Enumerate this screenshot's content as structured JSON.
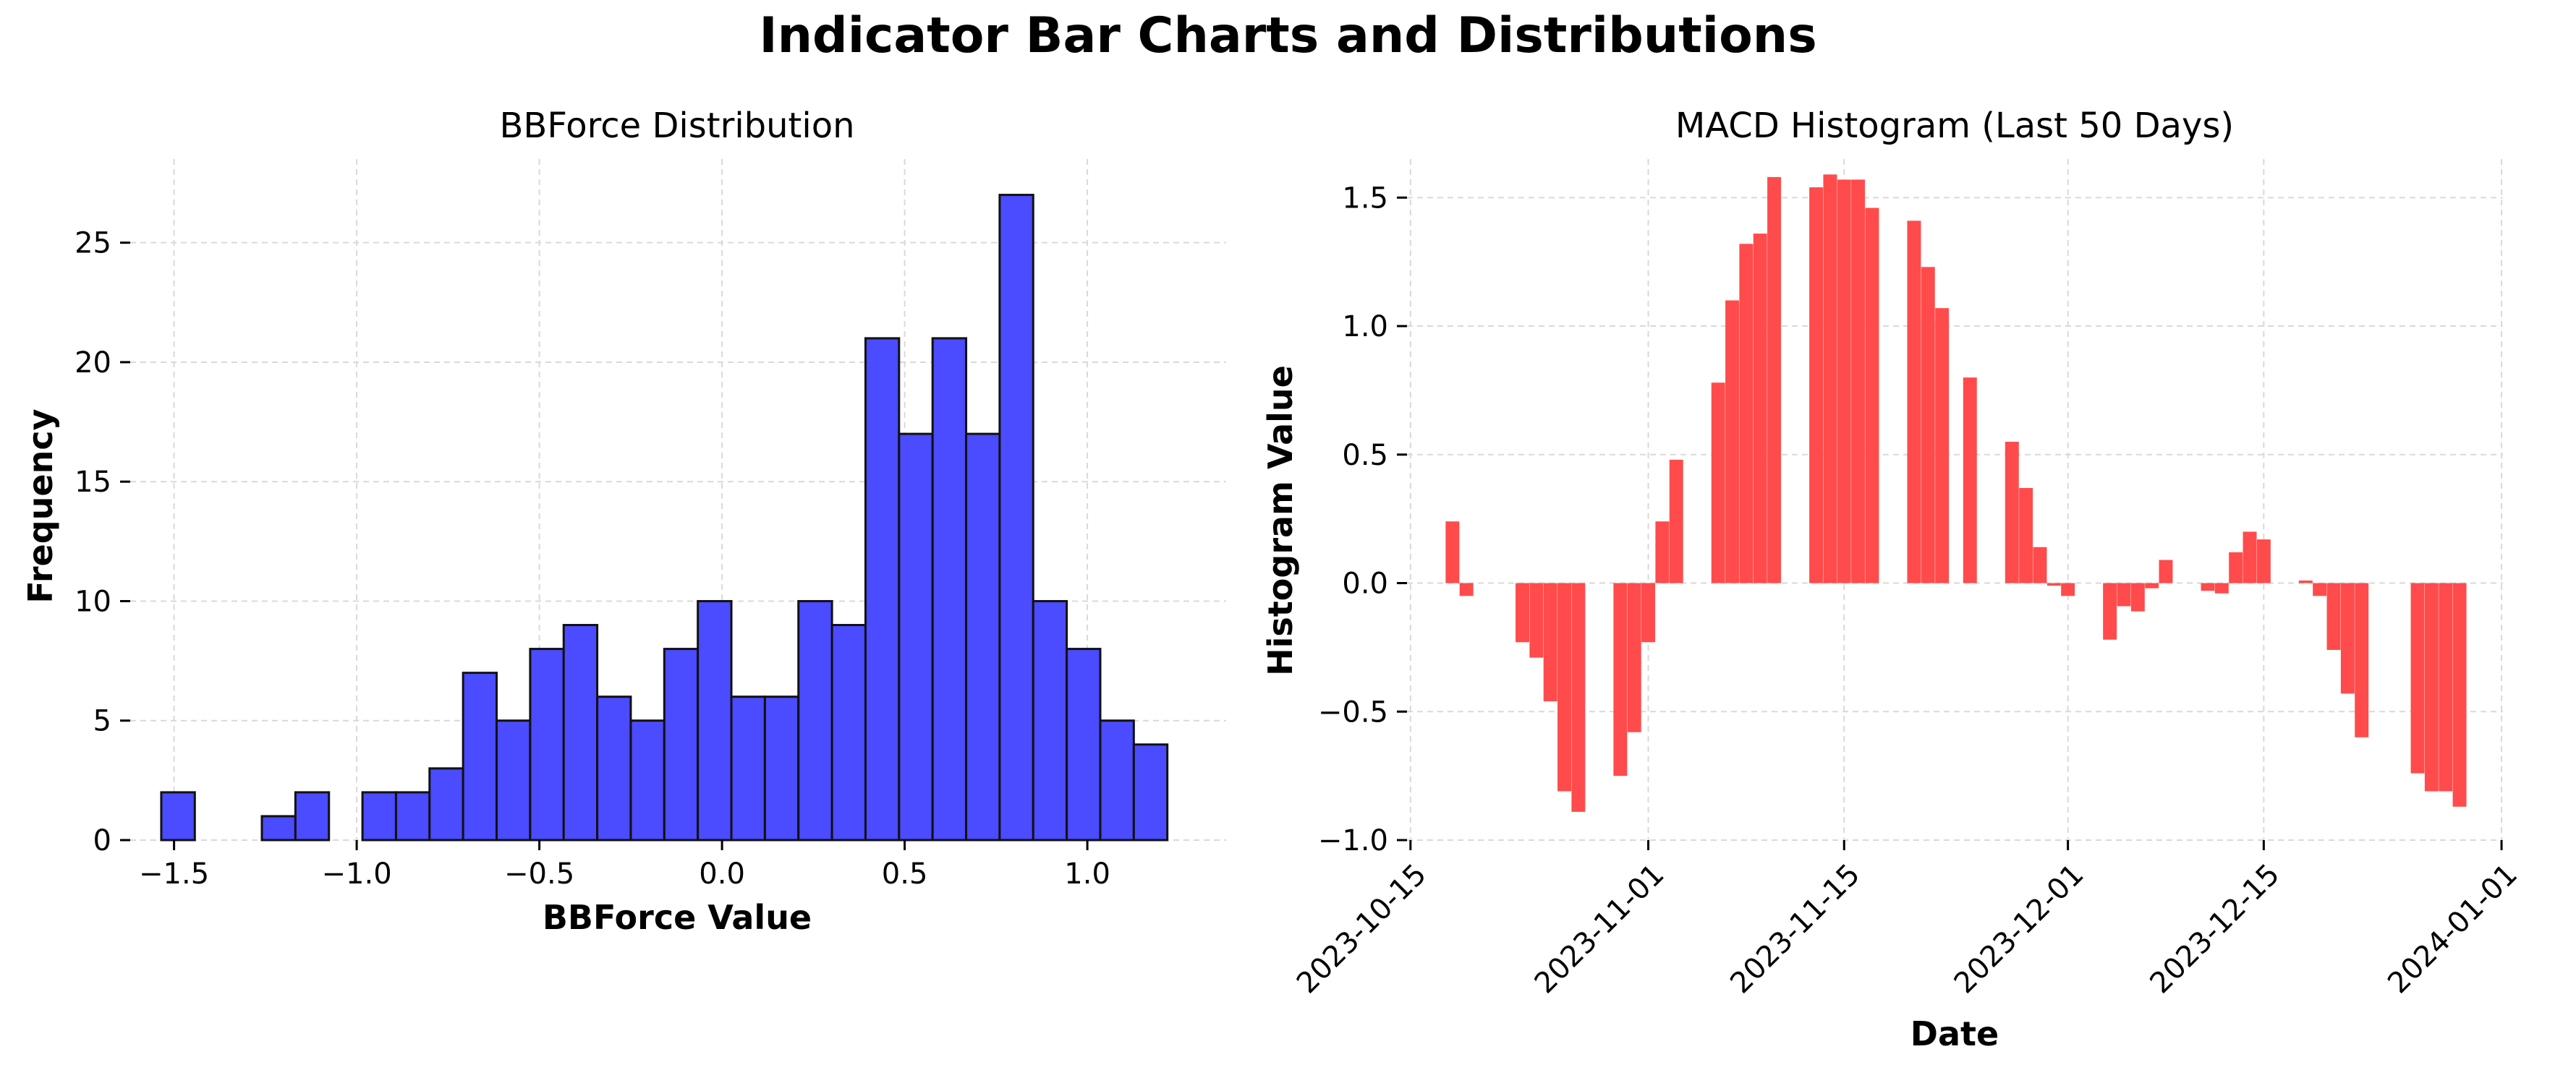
{
  "figure": {
    "title": "Indicator Bar Charts and Distributions",
    "colors": {
      "histogram_fill": "#4b4bff",
      "histogram_edge": "#111111",
      "macd_bar": "#ff4b4b",
      "grid": "#d9d9d9"
    }
  },
  "chart_data": [
    {
      "type": "bar",
      "title": "BBForce Distribution",
      "xlabel": "BBForce Value",
      "ylabel": "Frequency",
      "xlim": [
        -1.62,
        1.38
      ],
      "ylim": [
        0,
        28.5
      ],
      "xticks": [
        -1.5,
        -1.0,
        -0.5,
        0.0,
        0.5,
        1.0
      ],
      "xtick_labels": [
        "−1.5",
        "−1.0",
        "−0.5",
        "0.0",
        "0.5",
        "1.0"
      ],
      "yticks": [
        0,
        5,
        10,
        15,
        20,
        25
      ],
      "ytick_labels": [
        "0",
        "5",
        "10",
        "15",
        "20",
        "25"
      ],
      "grid": true,
      "bin_start": -1.535,
      "bin_width": 0.0918,
      "counts": [
        2,
        0,
        0,
        1,
        2,
        0,
        2,
        2,
        3,
        7,
        5,
        8,
        9,
        6,
        5,
        8,
        10,
        6,
        6,
        10,
        9,
        21,
        17,
        21,
        17,
        27,
        10,
        8,
        5,
        4
      ]
    },
    {
      "type": "bar",
      "title": "MACD Histogram (Last 50 Days)",
      "xlabel": "Date",
      "ylabel": "Histogram Value",
      "xlim": [
        "2023-10-15",
        "2024-01-01"
      ],
      "ylim": [
        -1.0,
        1.65
      ],
      "xticks": [
        "2023-10-15",
        "2023-11-01",
        "2023-11-15",
        "2023-12-01",
        "2023-12-15",
        "2024-01-01"
      ],
      "yticks": [
        -1.0,
        -0.5,
        0.0,
        0.5,
        1.0,
        1.5
      ],
      "ytick_labels": [
        "−1.0",
        "−0.5",
        "0.0",
        "0.5",
        "1.0",
        "1.5"
      ],
      "grid": true,
      "dates": [
        "2023-10-18",
        "2023-10-19",
        "2023-10-23",
        "2023-10-24",
        "2023-10-25",
        "2023-10-26",
        "2023-10-27",
        "2023-10-30",
        "2023-10-31",
        "2023-11-01",
        "2023-11-02",
        "2023-11-03",
        "2023-11-06",
        "2023-11-07",
        "2023-11-08",
        "2023-11-09",
        "2023-11-10",
        "2023-11-13",
        "2023-11-14",
        "2023-11-15",
        "2023-11-16",
        "2023-11-17",
        "2023-11-20",
        "2023-11-21",
        "2023-11-22",
        "2023-11-24",
        "2023-11-27",
        "2023-11-28",
        "2023-11-29",
        "2023-11-30",
        "2023-12-01",
        "2023-12-04",
        "2023-12-05",
        "2023-12-06",
        "2023-12-07",
        "2023-12-08",
        "2023-12-11",
        "2023-12-12",
        "2023-12-13",
        "2023-12-14",
        "2023-12-15",
        "2023-12-18",
        "2023-12-19",
        "2023-12-20",
        "2023-12-21",
        "2023-12-22",
        "2023-12-26",
        "2023-12-27",
        "2023-12-28",
        "2023-12-29"
      ],
      "values": [
        0.24,
        -0.05,
        -0.23,
        -0.29,
        -0.46,
        -0.81,
        -0.89,
        -0.75,
        -0.58,
        -0.23,
        0.24,
        0.48,
        0.78,
        1.1,
        1.32,
        1.36,
        1.58,
        1.54,
        1.59,
        1.57,
        1.57,
        1.46,
        1.41,
        1.23,
        1.07,
        0.8,
        0.55,
        0.37,
        0.14,
        -0.01,
        -0.05,
        -0.22,
        -0.09,
        -0.11,
        -0.02,
        0.09,
        -0.03,
        -0.04,
        0.12,
        0.2,
        0.17,
        0.01,
        -0.05,
        -0.26,
        -0.43,
        -0.6,
        -0.74,
        -0.81,
        -0.81,
        -0.87
      ]
    }
  ]
}
